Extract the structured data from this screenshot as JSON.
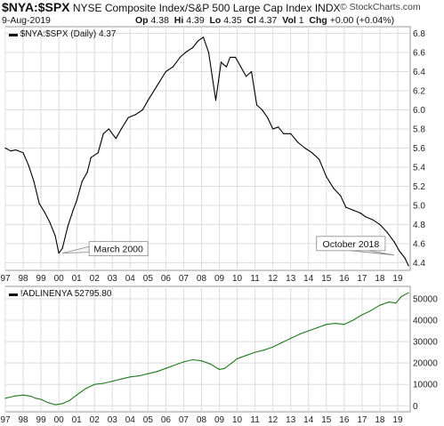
{
  "header": {
    "symbol": "$NYA:$SPX",
    "description": "NYSE Composite Index/S&P 500 Large Cap Index",
    "exchange": "INDX",
    "date": "9-Aug-2019",
    "open_label": "Op",
    "open": "4.38",
    "high_label": "Hi",
    "high": "4.39",
    "low_label": "Lo",
    "low": "4.35",
    "close_label": "Cl",
    "close": "4.37",
    "vol_label": "Vol",
    "vol": "1",
    "chg_label": "Chg",
    "chg": "+0.00 (+0.04%)",
    "brand": "© StockCharts.com"
  },
  "chart_data": [
    {
      "type": "line",
      "legend": "$NYA:$SPX (Daily) 4.37",
      "legend_placement": "top-left",
      "x_ticks": [
        "97",
        "98",
        "99",
        "00",
        "01",
        "02",
        "03",
        "04",
        "05",
        "06",
        "07",
        "08",
        "09",
        "10",
        "11",
        "12",
        "13",
        "14",
        "15",
        "16",
        "17",
        "18",
        "19"
      ],
      "y_ticks": [
        4.4,
        4.6,
        4.8,
        5.0,
        5.2,
        5.4,
        5.6,
        5.8,
        6.0,
        6.2,
        6.4,
        6.6,
        6.8
      ],
      "ylim": [
        4.32,
        6.87
      ],
      "xlim": [
        1997.0,
        2019.7
      ],
      "grid": true,
      "color": "#000000",
      "x": [
        1997.0,
        1997.3,
        1997.6,
        1998.0,
        1998.3,
        1998.6,
        1998.9,
        1999.2,
        1999.5,
        1999.8,
        2000.0,
        2000.2,
        2000.5,
        2000.8,
        2001.0,
        2001.3,
        2001.6,
        2001.8,
        2002.2,
        2002.5,
        2002.8,
        2003.2,
        2003.5,
        2003.9,
        2004.3,
        2004.7,
        2005.0,
        2005.5,
        2006.0,
        2006.4,
        2006.8,
        2007.1,
        2007.5,
        2007.8,
        2008.1,
        2008.4,
        2008.6,
        2008.8,
        2008.95,
        2009.1,
        2009.2,
        2009.4,
        2009.6,
        2009.9,
        2010.2,
        2010.5,
        2010.8,
        2011.1,
        2011.4,
        2011.7,
        2012.0,
        2012.3,
        2012.6,
        2013.0,
        2013.4,
        2013.8,
        2014.2,
        2014.6,
        2015.0,
        2015.4,
        2015.8,
        2016.1,
        2016.5,
        2016.9,
        2017.2,
        2017.6,
        2018.0,
        2018.4,
        2018.8,
        2019.1,
        2019.4,
        2019.6
      ],
      "y": [
        5.6,
        5.57,
        5.58,
        5.55,
        5.42,
        5.25,
        5.02,
        4.93,
        4.82,
        4.68,
        4.5,
        4.55,
        4.78,
        4.95,
        5.05,
        5.25,
        5.35,
        5.5,
        5.55,
        5.75,
        5.8,
        5.7,
        5.8,
        5.92,
        5.95,
        6.0,
        6.1,
        6.25,
        6.4,
        6.45,
        6.55,
        6.6,
        6.65,
        6.72,
        6.76,
        6.6,
        6.35,
        6.1,
        6.3,
        6.5,
        6.48,
        6.45,
        6.55,
        6.55,
        6.45,
        6.35,
        6.4,
        6.05,
        6.0,
        5.92,
        5.8,
        5.82,
        5.75,
        5.75,
        5.66,
        5.6,
        5.55,
        5.48,
        5.3,
        5.18,
        5.1,
        4.98,
        4.95,
        4.92,
        4.88,
        4.85,
        4.8,
        4.72,
        4.62,
        4.52,
        4.45,
        4.37
      ],
      "annotations": [
        {
          "text": "March 2000",
          "x": 2000.2,
          "y": 4.5
        },
        {
          "text": "October 2018",
          "x": 2018.8,
          "y": 4.48
        }
      ]
    },
    {
      "type": "line",
      "legend": "!ADLINENYA 52795.80",
      "legend_placement": "top-left",
      "x_ticks": [
        "97",
        "98",
        "99",
        "00",
        "01",
        "02",
        "03",
        "04",
        "05",
        "06",
        "07",
        "08",
        "09",
        "10",
        "11",
        "12",
        "13",
        "14",
        "15",
        "16",
        "17",
        "18",
        "19"
      ],
      "y_ticks": [
        0,
        10000,
        20000,
        30000,
        40000,
        50000
      ],
      "ylim": [
        -2800,
        55800
      ],
      "xlim": [
        1997.0,
        2019.7
      ],
      "grid": true,
      "color": "#1f7a1f",
      "x": [
        1997.0,
        1997.5,
        1998.0,
        1998.4,
        1998.7,
        1999.0,
        1999.4,
        1999.8,
        2000.2,
        2000.6,
        2001.0,
        2001.5,
        2002.0,
        2002.5,
        2003.0,
        2003.5,
        2004.0,
        2004.5,
        2005.0,
        2005.5,
        2006.0,
        2006.5,
        2007.0,
        2007.5,
        2008.0,
        2008.5,
        2009.0,
        2009.3,
        2009.7,
        2010.0,
        2010.5,
        2011.0,
        2011.5,
        2012.0,
        2012.5,
        2013.0,
        2013.5,
        2014.0,
        2014.5,
        2015.0,
        2015.5,
        2016.0,
        2016.5,
        2017.0,
        2017.5,
        2018.0,
        2018.5,
        2018.9,
        2019.2,
        2019.6
      ],
      "y": [
        3500,
        4500,
        5000,
        4500,
        3500,
        3000,
        1500,
        500,
        1000,
        2500,
        5000,
        8000,
        10000,
        10500,
        11500,
        12500,
        13500,
        14000,
        15000,
        16000,
        17500,
        19000,
        20500,
        21500,
        21000,
        19500,
        17000,
        17500,
        20000,
        22000,
        23500,
        25000,
        26000,
        27500,
        29500,
        31500,
        33500,
        35000,
        36500,
        38000,
        38500,
        38000,
        40000,
        42500,
        44500,
        47000,
        48500,
        48000,
        51000,
        52800
      ]
    }
  ]
}
